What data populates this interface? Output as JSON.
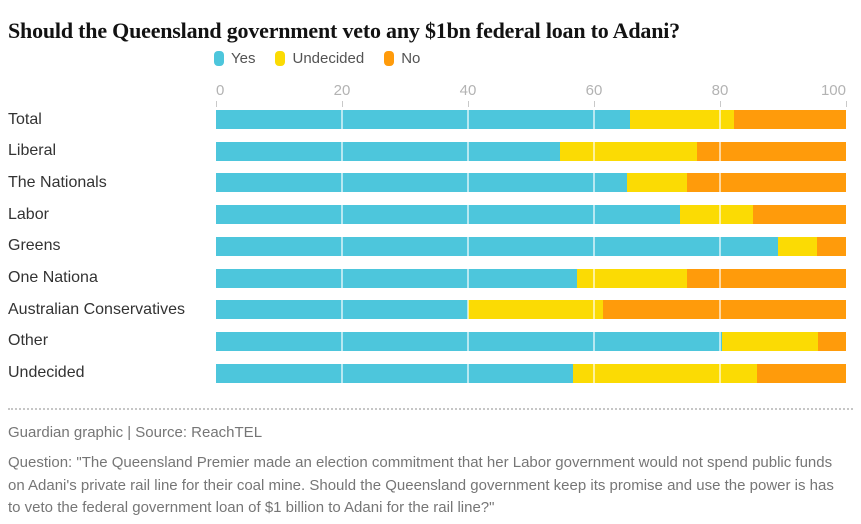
{
  "page": {
    "title": "Should the Queensland government veto any $1bn federal loan to Adani?",
    "credit": "Guardian graphic | Source: ReachTEL",
    "question": "Question: \"The Queensland Premier made an election commitment that her Labor government would not spend public funds on Adani's private rail line for their coal mine. Should the Queensland government keep its promise and use the power is has to veto the federal government loan of $1 billion to Adani for the rail line?\""
  },
  "colors": {
    "yes": "#4dc6dc",
    "undecided": "#fbdb04",
    "no": "#ff9b0b",
    "title_text": "#121212",
    "category_text": "#333333",
    "tick_text": "#b3b3b3",
    "footer_text": "#767676",
    "gridline": "#ffffff"
  },
  "chart_data": {
    "type": "bar",
    "orientation": "horizontal",
    "stacked": true,
    "title": "Should the Queensland government veto any $1bn federal loan to Adani?",
    "xlabel": "",
    "ylabel": "",
    "xlim": [
      0,
      100
    ],
    "x_ticks": [
      0,
      20,
      40,
      60,
      80,
      100
    ],
    "grid": "vertical white gridlines at 20/40/60/80 drawn over bars",
    "legend_position": "top",
    "categories": [
      "Total",
      "Liberal",
      "The Nationals",
      "Labor",
      "Greens",
      "One Nationa",
      "Australian Conservatives",
      "Other",
      "Undecided"
    ],
    "series": [
      {
        "name": "Yes",
        "color": "#4dc6dc",
        "values": [
          65.7,
          54.6,
          65.3,
          73.6,
          89.2,
          57.3,
          40.0,
          80.3,
          56.6
        ]
      },
      {
        "name": "Undecided",
        "color": "#fbdb04",
        "values": [
          16.6,
          21.8,
          9.4,
          11.7,
          6.2,
          17.4,
          21.5,
          15.2,
          29.3
        ]
      },
      {
        "name": "No",
        "color": "#ff9b0b",
        "values": [
          17.7,
          23.6,
          25.3,
          14.7,
          4.6,
          25.3,
          38.5,
          4.5,
          14.1
        ]
      }
    ]
  }
}
